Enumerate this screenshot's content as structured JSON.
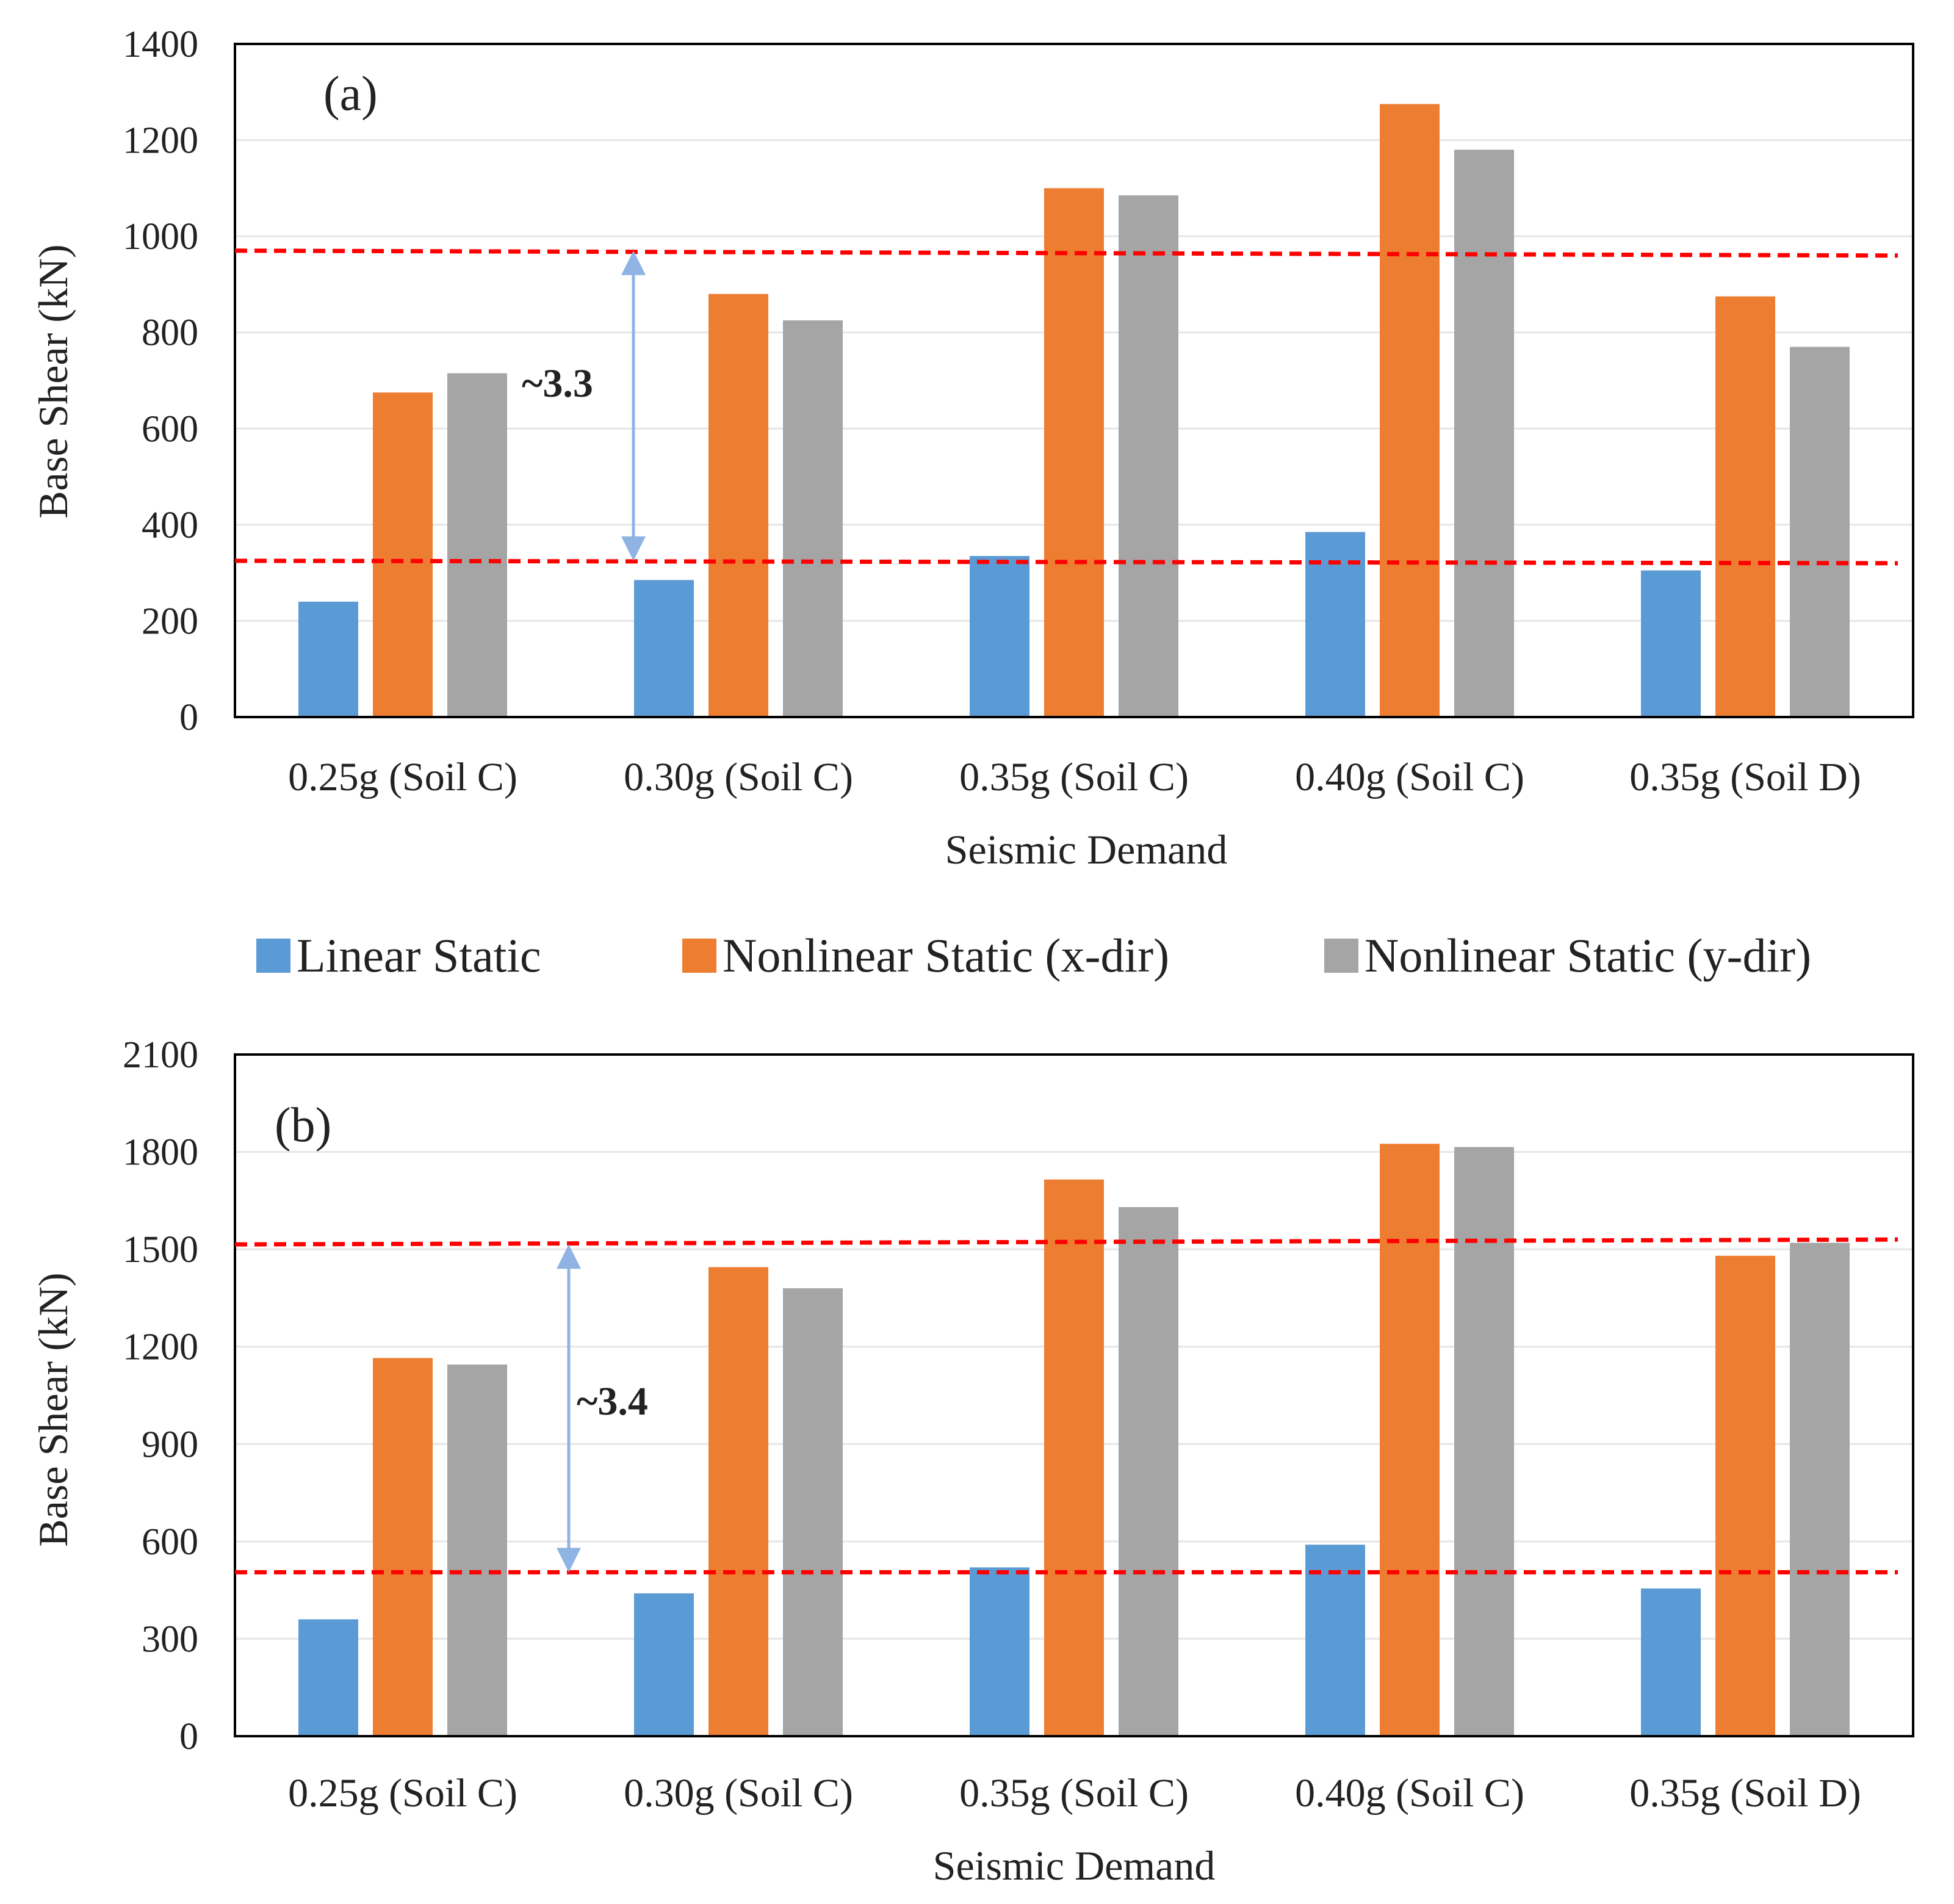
{
  "chart_data": [
    {
      "type": "bar",
      "panel_tag": "(a)",
      "categories": [
        "0.25g (Soil C)",
        "0.30g (Soil C)",
        "0.35g (Soil C)",
        "0.40g (Soil C)",
        "0.35g (Soil D)"
      ],
      "series": [
        {
          "name": "Linear Static",
          "values": [
            240,
            285,
            335,
            385,
            305
          ]
        },
        {
          "name": "Nonlinear Static (x-dir)",
          "values": [
            675,
            880,
            1100,
            1275,
            875
          ]
        },
        {
          "name": "Nonlinear Static (y-dir)",
          "values": [
            715,
            825,
            1085,
            1180,
            770
          ]
        }
      ],
      "xlabel": "Seismic Demand",
      "ylabel": "Base Shear (kN)",
      "ylim": [
        0,
        1400
      ],
      "yticks": [
        "0",
        "200",
        "400",
        "600",
        "800",
        "1000",
        "1200",
        "1400"
      ],
      "reference_lines": {
        "upper": 970,
        "lower": 325,
        "style": "dashed red"
      },
      "annotation": "~3.3",
      "grid": true
    },
    {
      "type": "bar",
      "panel_tag": "(b)",
      "categories": [
        "0.25g (Soil C)",
        "0.30g (Soil C)",
        "0.35g (Soil C)",
        "0.40g (Soil C)",
        "0.35g (Soil D)"
      ],
      "series": [
        {
          "name": "Linear Static",
          "values": [
            360,
            440,
            520,
            590,
            455
          ]
        },
        {
          "name": "Nonlinear Static (x-dir)",
          "values": [
            1165,
            1445,
            1715,
            1825,
            1480
          ]
        },
        {
          "name": "Nonlinear Static (y-dir)",
          "values": [
            1145,
            1380,
            1630,
            1815,
            1520
          ]
        }
      ],
      "xlabel": "Seismic Demand",
      "ylabel": "Base Shear (kN)",
      "ylim": [
        0,
        2100
      ],
      "yticks": [
        "0",
        "300",
        "600",
        "900",
        "1200",
        "1500",
        "1800",
        "2100"
      ],
      "reference_lines": {
        "upper": 1515,
        "lower": 505,
        "style": "dashed red"
      },
      "annotation": "~3.4",
      "grid": true
    }
  ],
  "legend": {
    "items": [
      "Linear Static",
      "Nonlinear Static (x-dir)",
      "Nonlinear Static (y-dir)"
    ],
    "colors": [
      "#5b9bd5",
      "#ed7d31",
      "#a5a5a5"
    ],
    "placement": "between panels"
  },
  "colors": {
    "reference_line": "#ff0000",
    "arrow": "#8fb4e3",
    "gridline": "#e6e6e6"
  }
}
